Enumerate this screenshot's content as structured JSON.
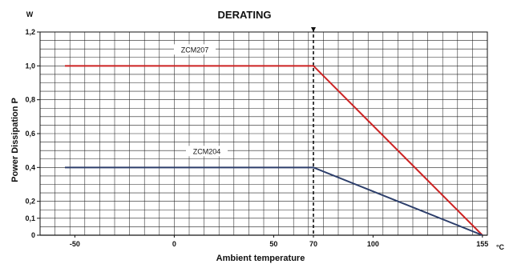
{
  "chart_data": {
    "type": "line",
    "title": "DERATING",
    "xlabel": "Ambient  temperature",
    "ylabel": "Power  Dissipation  P",
    "x_unit": "°C",
    "y_unit": "W",
    "xlim": [
      -67.5,
      157.5
    ],
    "ylim": [
      0,
      1.2
    ],
    "x_ticks": [
      {
        "value": -50,
        "label": "-50"
      },
      {
        "value": 0,
        "label": "0"
      },
      {
        "value": 50,
        "label": "50"
      },
      {
        "value": 70,
        "label": "70"
      },
      {
        "value": 100,
        "label": "100"
      },
      {
        "value": 155,
        "label": "155"
      }
    ],
    "y_ticks": [
      {
        "value": 0,
        "label": "0"
      },
      {
        "value": 0.1,
        "label": "0,1"
      },
      {
        "value": 0.2,
        "label": "0,2"
      },
      {
        "value": 0.4,
        "label": "0,4"
      },
      {
        "value": 0.6,
        "label": "0,6"
      },
      {
        "value": 0.8,
        "label": "0,8"
      },
      {
        "value": 1.0,
        "label": "1,0"
      },
      {
        "value": 1.2,
        "label": "1,2"
      }
    ],
    "grid": true,
    "reference_line_x": 70,
    "series": [
      {
        "name": "ZCM207",
        "color": "#cc2222",
        "x": [
          -55,
          70,
          155
        ],
        "y": [
          1.0,
          1.0,
          0
        ]
      },
      {
        "name": "ZCM204",
        "color": "#2c3e6b",
        "x": [
          -55,
          70,
          155
        ],
        "y": [
          0.4,
          0.4,
          0
        ]
      }
    ]
  }
}
